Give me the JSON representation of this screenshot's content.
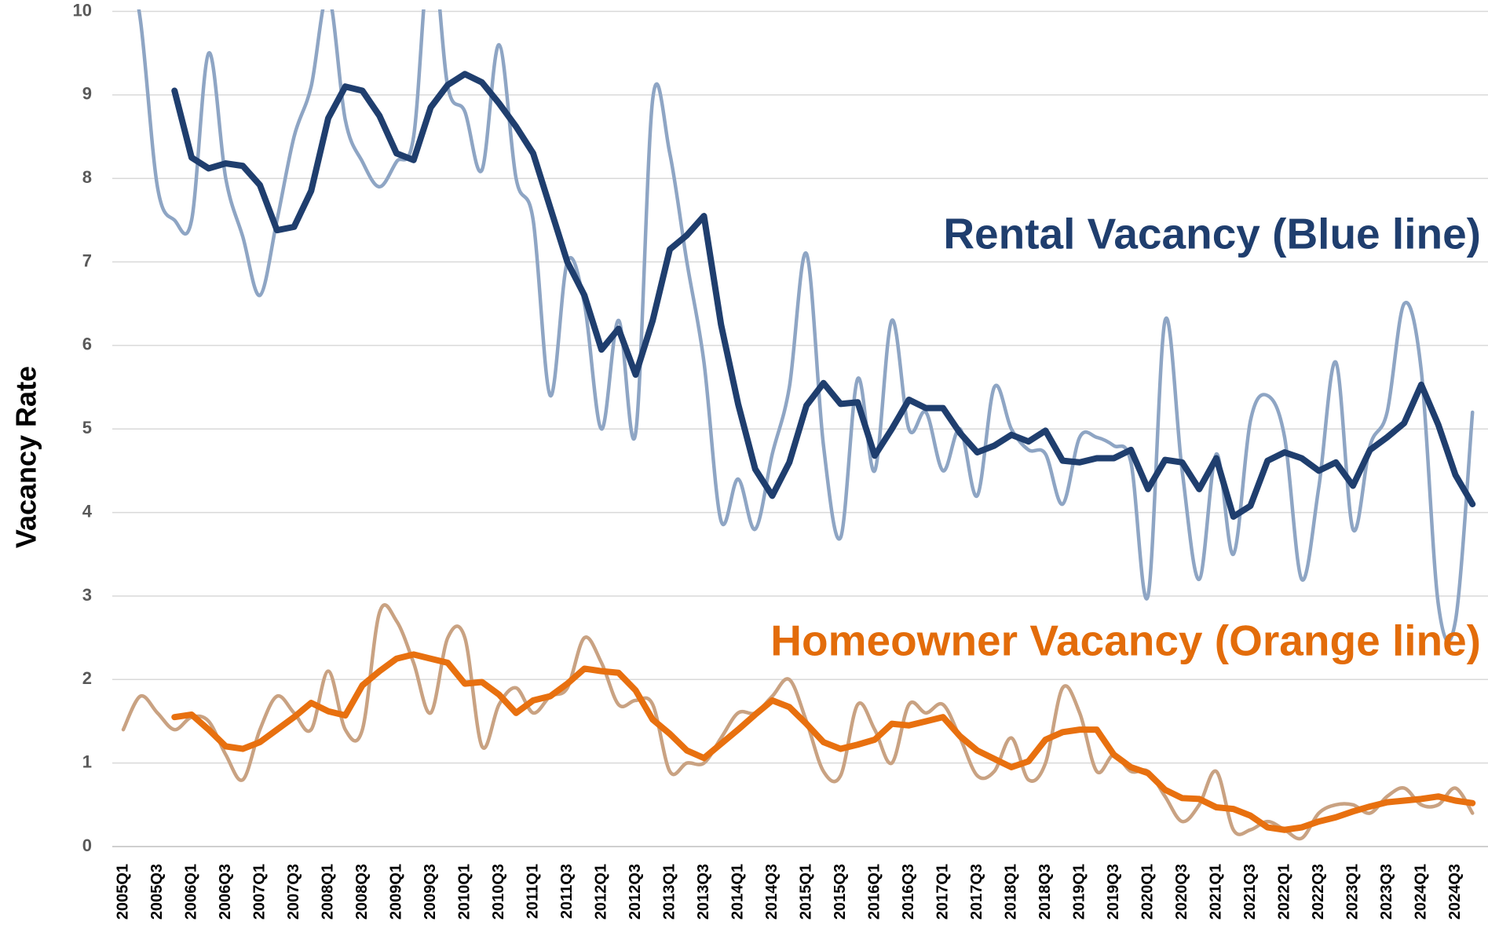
{
  "chart_data": {
    "type": "line",
    "ylabel": "Vacancy Rate",
    "annotations": [
      "Rental Vacancy (Blue line)",
      "Homeowner Vacancy (Orange line)"
    ],
    "annotation_colors": [
      "#1f3e6e",
      "#e36c0a"
    ],
    "categories": [
      "2005Q1",
      null,
      "2005Q3",
      null,
      "2006Q1",
      null,
      "2006Q3",
      null,
      "2007Q1",
      null,
      "2007Q3",
      null,
      "2008Q1",
      null,
      "2008Q3",
      null,
      "2009Q1",
      null,
      "2009Q3",
      null,
      "2010Q1",
      null,
      "2010Q3",
      null,
      "2011Q1",
      null,
      "2011Q3",
      null,
      "2012Q1",
      null,
      "2012Q3",
      null,
      "2013Q1",
      null,
      "2013Q3",
      null,
      "2014Q1",
      null,
      "2014Q3",
      null,
      "2015Q1",
      null,
      "2015Q3",
      null,
      "2016Q1",
      null,
      "2016Q3",
      null,
      "2017Q1",
      null,
      "2017Q3",
      null,
      "2018Q1",
      null,
      "2018Q3",
      null,
      "2019Q1",
      null,
      "2019Q3",
      null,
      "2020Q1",
      null,
      "2020Q3",
      null,
      "2021Q1",
      null,
      "2021Q3",
      null,
      "2022Q1",
      null,
      "2022Q3",
      null,
      "2023Q1",
      null,
      "2023Q3",
      null,
      "2024Q1",
      null,
      "2024Q3",
      null
    ],
    "series": [
      {
        "color": "#8ea5c4",
        "smooth": true,
        "values": [
          10.9,
          9.9,
          7.9,
          7.5,
          7.5,
          9.5,
          8.0,
          7.3,
          6.6,
          7.5,
          8.5,
          9.1,
          10.2,
          8.7,
          8.2,
          7.9,
          8.2,
          8.5,
          10.8,
          9.1,
          8.8,
          8.1,
          9.6,
          8.0,
          7.5,
          5.4,
          7.0,
          6.5,
          5.0,
          6.3,
          4.95,
          8.95,
          8.3,
          7.0,
          5.8,
          3.9,
          4.4,
          3.8,
          4.7,
          5.5,
          7.1,
          4.8,
          3.7,
          5.6,
          4.5,
          6.3,
          5.0,
          5.2,
          4.5,
          5.0,
          4.2,
          5.5,
          5.0,
          4.75,
          4.7,
          4.1,
          4.9,
          4.9,
          4.8,
          4.6,
          3.0,
          6.3,
          4.5,
          3.2,
          4.7,
          3.5,
          5.1,
          5.4,
          4.9,
          3.2,
          4.3,
          5.8,
          3.8,
          4.8,
          5.2,
          6.5,
          5.7,
          2.9,
          2.7,
          5.2
        ]
      },
      {
        "color": "#c9a282",
        "smooth": true,
        "values": [
          1.4,
          1.8,
          1.6,
          1.4,
          1.55,
          1.5,
          1.1,
          0.8,
          1.4,
          1.8,
          1.6,
          1.4,
          2.1,
          1.4,
          1.4,
          2.8,
          2.7,
          2.2,
          1.6,
          2.5,
          2.5,
          1.2,
          1.7,
          1.9,
          1.6,
          1.8,
          1.9,
          2.5,
          2.2,
          1.7,
          1.75,
          1.7,
          0.9,
          1.0,
          1.0,
          1.3,
          1.6,
          1.6,
          1.8,
          2.0,
          1.5,
          0.9,
          0.85,
          1.7,
          1.4,
          1.0,
          1.7,
          1.6,
          1.7,
          1.3,
          0.85,
          0.9,
          1.3,
          0.8,
          1.0,
          1.9,
          1.6,
          0.9,
          1.1,
          0.9,
          0.9,
          0.6,
          0.3,
          0.5,
          0.9,
          0.2,
          0.2,
          0.3,
          0.2,
          0.1,
          0.4,
          0.5,
          0.5,
          0.4,
          0.6,
          0.7,
          0.5,
          0.5,
          0.7,
          0.4
        ]
      },
      {
        "color": "#1f3e6e",
        "smooth": false,
        "values": [
          null,
          null,
          null,
          9.05,
          8.25,
          8.12,
          8.18,
          8.15,
          7.92,
          7.38,
          7.42,
          7.85,
          8.72,
          9.1,
          9.05,
          8.75,
          8.3,
          8.22,
          8.85,
          9.12,
          9.25,
          9.15,
          8.9,
          8.62,
          8.3,
          7.65,
          7.0,
          6.6,
          5.95,
          6.2,
          5.65,
          6.3,
          7.15,
          7.32,
          7.55,
          6.25,
          5.3,
          4.52,
          4.2,
          4.6,
          5.28,
          5.55,
          5.3,
          5.32,
          4.68,
          5.0,
          5.35,
          5.25,
          5.25,
          4.95,
          4.72,
          4.8,
          4.93,
          4.85,
          4.98,
          4.62,
          4.6,
          4.65,
          4.65,
          4.75,
          4.28,
          4.63,
          4.6,
          4.28,
          4.65,
          3.95,
          4.08,
          4.62,
          4.72,
          4.65,
          4.5,
          4.6,
          4.32,
          4.75,
          4.9,
          5.07,
          5.53,
          5.05,
          4.45,
          4.1
        ]
      },
      {
        "color": "#e8700f",
        "smooth": false,
        "values": [
          null,
          null,
          null,
          1.55,
          1.58,
          1.4,
          1.2,
          1.17,
          1.25,
          1.4,
          1.55,
          1.72,
          1.62,
          1.57,
          1.93,
          2.1,
          2.25,
          2.3,
          2.25,
          2.2,
          1.95,
          1.97,
          1.82,
          1.6,
          1.75,
          1.8,
          1.95,
          2.13,
          2.1,
          2.08,
          1.87,
          1.52,
          1.35,
          1.15,
          1.06,
          1.23,
          1.4,
          1.58,
          1.75,
          1.67,
          1.47,
          1.25,
          1.17,
          1.22,
          1.28,
          1.47,
          1.45,
          1.5,
          1.55,
          1.32,
          1.15,
          1.05,
          0.95,
          1.02,
          1.28,
          1.37,
          1.4,
          1.4,
          1.1,
          0.95,
          0.88,
          0.68,
          0.58,
          0.57,
          0.47,
          0.45,
          0.37,
          0.23,
          0.2,
          0.23,
          0.3,
          0.35,
          0.42,
          0.48,
          0.53,
          0.55,
          0.57,
          0.6,
          0.55,
          0.52
        ]
      }
    ],
    "ylim": [
      0,
      10
    ],
    "yticks": [
      0,
      1,
      2,
      3,
      4,
      5,
      6,
      7,
      8,
      9,
      10
    ],
    "grid": true
  }
}
